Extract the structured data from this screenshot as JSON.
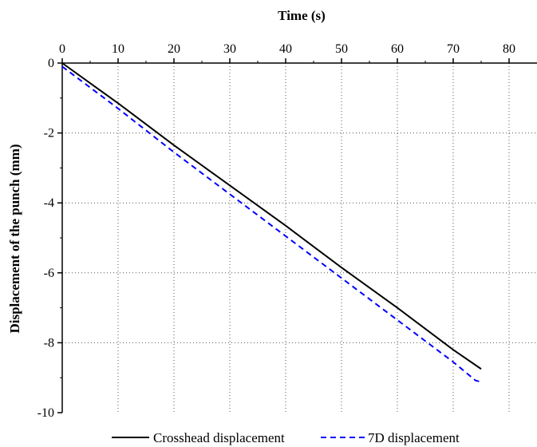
{
  "chart_data": {
    "type": "line",
    "xlabel": "Time (s)",
    "ylabel": "Displacement of the punch (mm)",
    "xlim": [
      0,
      85
    ],
    "ylim": [
      -10,
      0
    ],
    "x_ticks": [
      0,
      10,
      20,
      30,
      40,
      50,
      60,
      70,
      80
    ],
    "y_ticks": [
      0,
      -2,
      -4,
      -6,
      -8,
      -10
    ],
    "x_axis_position": "top",
    "grid": "dotted",
    "legend_position": "bottom",
    "series": [
      {
        "name": "Crosshead displacement",
        "color": "#000000",
        "style": "solid",
        "x": [
          0,
          10,
          20,
          30,
          40,
          50,
          60,
          70,
          75
        ],
        "y": [
          0,
          -1.15,
          -2.35,
          -3.5,
          -4.65,
          -5.85,
          -7.0,
          -8.2,
          -8.75
        ]
      },
      {
        "name": "7D displacement",
        "color": "#0000ff",
        "style": "dashed",
        "x": [
          0,
          10,
          20,
          30,
          40,
          50,
          60,
          70,
          74,
          75
        ],
        "y": [
          -0.1,
          -1.3,
          -2.55,
          -3.75,
          -4.95,
          -6.15,
          -7.35,
          -8.55,
          -9.08,
          -9.12
        ]
      }
    ]
  }
}
